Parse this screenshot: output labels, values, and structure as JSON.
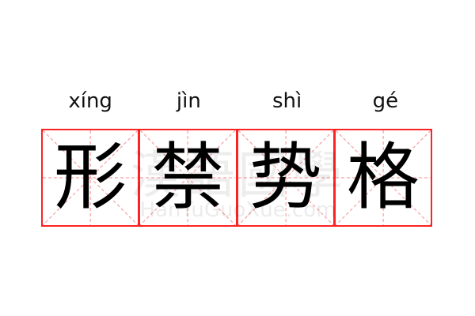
{
  "entry": {
    "pinyin": [
      "xíng",
      "jìn",
      "shì",
      "gé"
    ],
    "characters": [
      "形",
      "禁",
      "势",
      "格"
    ]
  },
  "watermark": {
    "chinese": "漢語國學",
    "latin": "HanYuGuoXue.com"
  },
  "colors": {
    "grid_border": "#ff2222",
    "guide_lines": "#f8a0a0",
    "text": "#000000"
  }
}
